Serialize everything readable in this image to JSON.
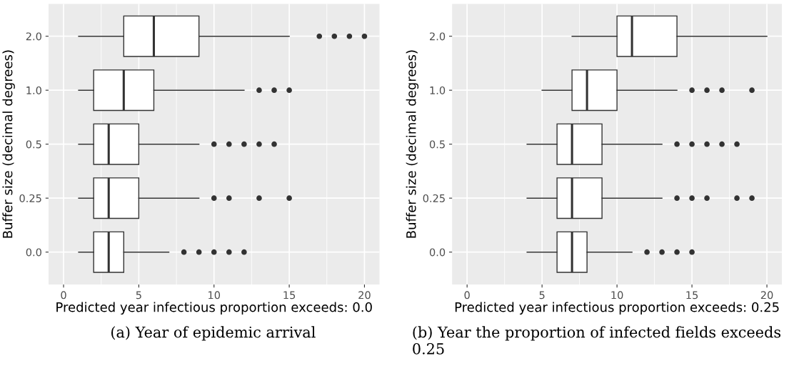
{
  "chart_data": [
    {
      "type": "box",
      "orientation": "horizontal",
      "xlabel": "Predicted year infectious proportion exceeds: 0.0",
      "ylabel": "Buffer size (decimal degrees)",
      "categories": [
        "2.0",
        "1.0",
        "0.5",
        "0.25",
        "0.0"
      ],
      "boxes": [
        {
          "low": 1,
          "q1": 4,
          "median": 6,
          "q3": 9,
          "high": 15,
          "outliers": [
            17,
            18,
            19,
            20
          ]
        },
        {
          "low": 1,
          "q1": 2,
          "median": 4,
          "q3": 6,
          "high": 12,
          "outliers": [
            13,
            14,
            15
          ]
        },
        {
          "low": 1,
          "q1": 2,
          "median": 3,
          "q3": 5,
          "high": 9,
          "outliers": [
            10,
            11,
            12,
            13,
            14
          ]
        },
        {
          "low": 1,
          "q1": 2,
          "median": 3,
          "q3": 5,
          "high": 9,
          "outliers": [
            10,
            11,
            13,
            15
          ]
        },
        {
          "low": 1,
          "q1": 2,
          "median": 3,
          "q3": 4,
          "high": 7,
          "outliers": [
            8,
            9,
            10,
            11,
            12
          ]
        }
      ],
      "xlim": [
        -1,
        21
      ],
      "xticks": [
        0,
        5,
        10,
        15,
        20
      ],
      "grid": true,
      "annotations": [
        "(a) Year of epidemic arrival"
      ]
    },
    {
      "type": "box",
      "orientation": "horizontal",
      "xlabel": "Predicted year infectious proportion exceeds: 0.25",
      "ylabel": "Buffer size (decimal degrees)",
      "categories": [
        "2.0",
        "1.0",
        "0.5",
        "0.25",
        "0.0"
      ],
      "boxes": [
        {
          "low": 7,
          "q1": 10,
          "median": 11,
          "q3": 14,
          "high": 20
        },
        {
          "low": 5,
          "q1": 7,
          "median": 8,
          "q3": 10,
          "high": 14,
          "outliers": [
            15,
            16,
            17,
            19
          ]
        },
        {
          "low": 4,
          "q1": 6,
          "median": 7,
          "q3": 9,
          "high": 13,
          "outliers": [
            14,
            15,
            16,
            17,
            18
          ]
        },
        {
          "low": 4,
          "q1": 6,
          "median": 7,
          "q3": 9,
          "high": 13,
          "outliers": [
            14,
            15,
            16,
            18,
            19
          ]
        },
        {
          "low": 4,
          "q1": 6,
          "median": 7,
          "q3": 8,
          "high": 11,
          "outliers": [
            12,
            13,
            14,
            15
          ]
        }
      ],
      "xlim": [
        -1,
        21
      ],
      "xticks": [
        0,
        5,
        10,
        15,
        20
      ],
      "grid": true,
      "annotations": [
        "(b) Year the proportion of infected fields exceeds 0.25"
      ]
    }
  ]
}
